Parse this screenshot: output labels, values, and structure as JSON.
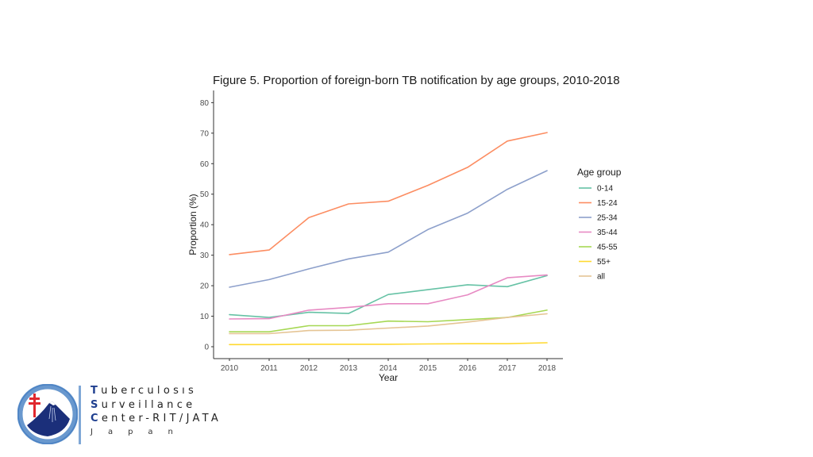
{
  "chart_data": {
    "type": "line",
    "title": "Figure 5. Proportion of foreign-born TB notification by age groups, 2010-2018",
    "xlabel": "Year",
    "ylabel": "Proportion (%)",
    "x": [
      2010,
      2011,
      2012,
      2013,
      2014,
      2015,
      2016,
      2017,
      2018
    ],
    "x_tick_labels": [
      "2010",
      "2011",
      "2012",
      "2013",
      "2014",
      "2015",
      "2016",
      "2017",
      "2018"
    ],
    "y_ticks": [
      0,
      10,
      20,
      30,
      40,
      50,
      60,
      70,
      80
    ],
    "y_tick_labels": [
      "0",
      "10",
      "20",
      "30",
      "40",
      "50",
      "60",
      "70",
      "80"
    ],
    "ylim": [
      -3.9,
      84
    ],
    "xlim": [
      2009.6,
      2018.4
    ],
    "grid": false,
    "legend": {
      "title": "Age group",
      "placement": "right"
    },
    "series": [
      {
        "name": "0-14",
        "color": "#66C2A5",
        "values": [
          10.5,
          9.6,
          11.3,
          10.9,
          17.1,
          18.7,
          20.3,
          19.7,
          23.3
        ]
      },
      {
        "name": "15-24",
        "color": "#FC8D62",
        "values": [
          30.2,
          31.7,
          42.3,
          46.8,
          47.7,
          52.9,
          58.8,
          67.4,
          70.2
        ]
      },
      {
        "name": "25-34",
        "color": "#8DA0CB",
        "values": [
          19.5,
          22.0,
          25.5,
          28.8,
          31.0,
          38.4,
          43.8,
          51.6,
          57.7
        ]
      },
      {
        "name": "35-44",
        "color": "#E78AC3",
        "values": [
          9.1,
          9.2,
          12.0,
          12.9,
          14.1,
          14.1,
          17.0,
          22.6,
          23.5
        ]
      },
      {
        "name": "45-55",
        "color": "#A6D854",
        "values": [
          4.9,
          4.9,
          6.9,
          6.9,
          8.4,
          8.2,
          8.9,
          9.6,
          12.0
        ]
      },
      {
        "name": "55+",
        "color": "#FFD92F",
        "values": [
          0.7,
          0.7,
          0.8,
          0.8,
          0.8,
          0.9,
          1.0,
          1.0,
          1.3
        ]
      },
      {
        "name": "all",
        "color": "#E5C494",
        "values": [
          4.3,
          4.3,
          5.3,
          5.4,
          6.1,
          6.8,
          8.1,
          9.6,
          10.8
        ]
      }
    ]
  },
  "branding": {
    "line1_cap": "T",
    "line1_rest": "uberculosıs",
    "line2_cap": "S",
    "line2_rest": "urveillance",
    "line3_cap": "C",
    "line3_rest": "enter-RIT/JATA",
    "line4": "Japan"
  }
}
